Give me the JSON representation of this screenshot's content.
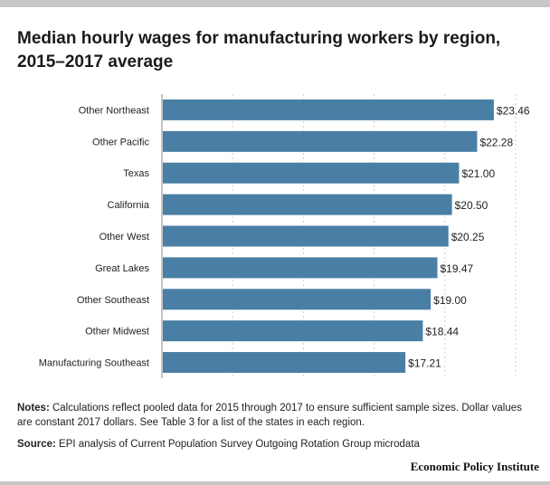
{
  "title": "Median hourly wages for manufacturing workers by region, 2015–2017 average",
  "notes": {
    "label": "Notes:",
    "text": "Calculations reflect pooled data for 2015 through 2017 to ensure sufficient sample sizes. Dollar values are constant 2017 dollars. See Table 3 for a list of the states in each region."
  },
  "source": {
    "label": "Source:",
    "text": "EPI analysis of Current Population Survey Outgoing Rotation Group microdata"
  },
  "brand": "Economic Policy Institute",
  "colors": {
    "bar": "#4a7fa5",
    "grid": "#cccccc",
    "axis": "#888888"
  },
  "chart_data": {
    "type": "bar",
    "orientation": "horizontal",
    "categories": [
      "Other Northeast",
      "Other Pacific",
      "Texas",
      "California",
      "Other West",
      "Great Lakes",
      "Other Southeast",
      "Other Midwest",
      "Manufacturing Southeast"
    ],
    "values": [
      23.46,
      22.28,
      21.0,
      20.5,
      20.25,
      19.47,
      19.0,
      18.44,
      17.21
    ],
    "value_labels": [
      "$23.46",
      "$22.28",
      "$21.00",
      "$20.50",
      "$20.25",
      "$19.47",
      "$19.00",
      "$18.44",
      "$17.21"
    ],
    "xlim": [
      0,
      25
    ],
    "grid": true
  }
}
